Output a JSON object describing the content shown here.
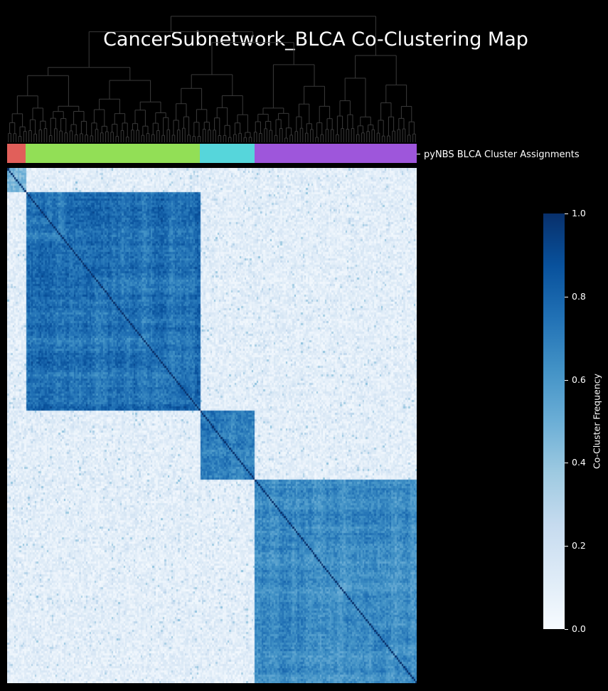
{
  "title": "CancerSubnetwork_BLCA Co-Clustering Map",
  "cluster_label": "pyNBS BLCA Cluster Assignments",
  "colorbar_label": "Co-Cluster Frequency",
  "colorbar_ticks": [
    "0.0",
    "0.2",
    "0.4",
    "0.6",
    "0.8",
    "1.0"
  ],
  "colors": {
    "background": "#000000",
    "dendrogram": "#3a3a3a",
    "colormap": "Blues"
  },
  "chart_data": {
    "type": "heatmap",
    "title": "CancerSubnetwork_BLCA Co-Clustering Map",
    "value_range": [
      0,
      1
    ],
    "colorbar_label": "Co-Cluster Frequency",
    "cluster_row_label": "pyNBS BLCA Cluster Assignments",
    "clusters": [
      {
        "id": 1,
        "color": "#e15f5a",
        "fraction": 0.045
      },
      {
        "id": 2,
        "color": "#92df56",
        "fraction": 0.425
      },
      {
        "id": 3,
        "color": "#56d6db",
        "fraction": 0.135
      },
      {
        "id": 4,
        "color": "#9e56db",
        "fraction": 0.395
      }
    ],
    "within_cluster_frequency": [
      0.45,
      0.75,
      0.7,
      0.65
    ],
    "dendrogram": true
  }
}
